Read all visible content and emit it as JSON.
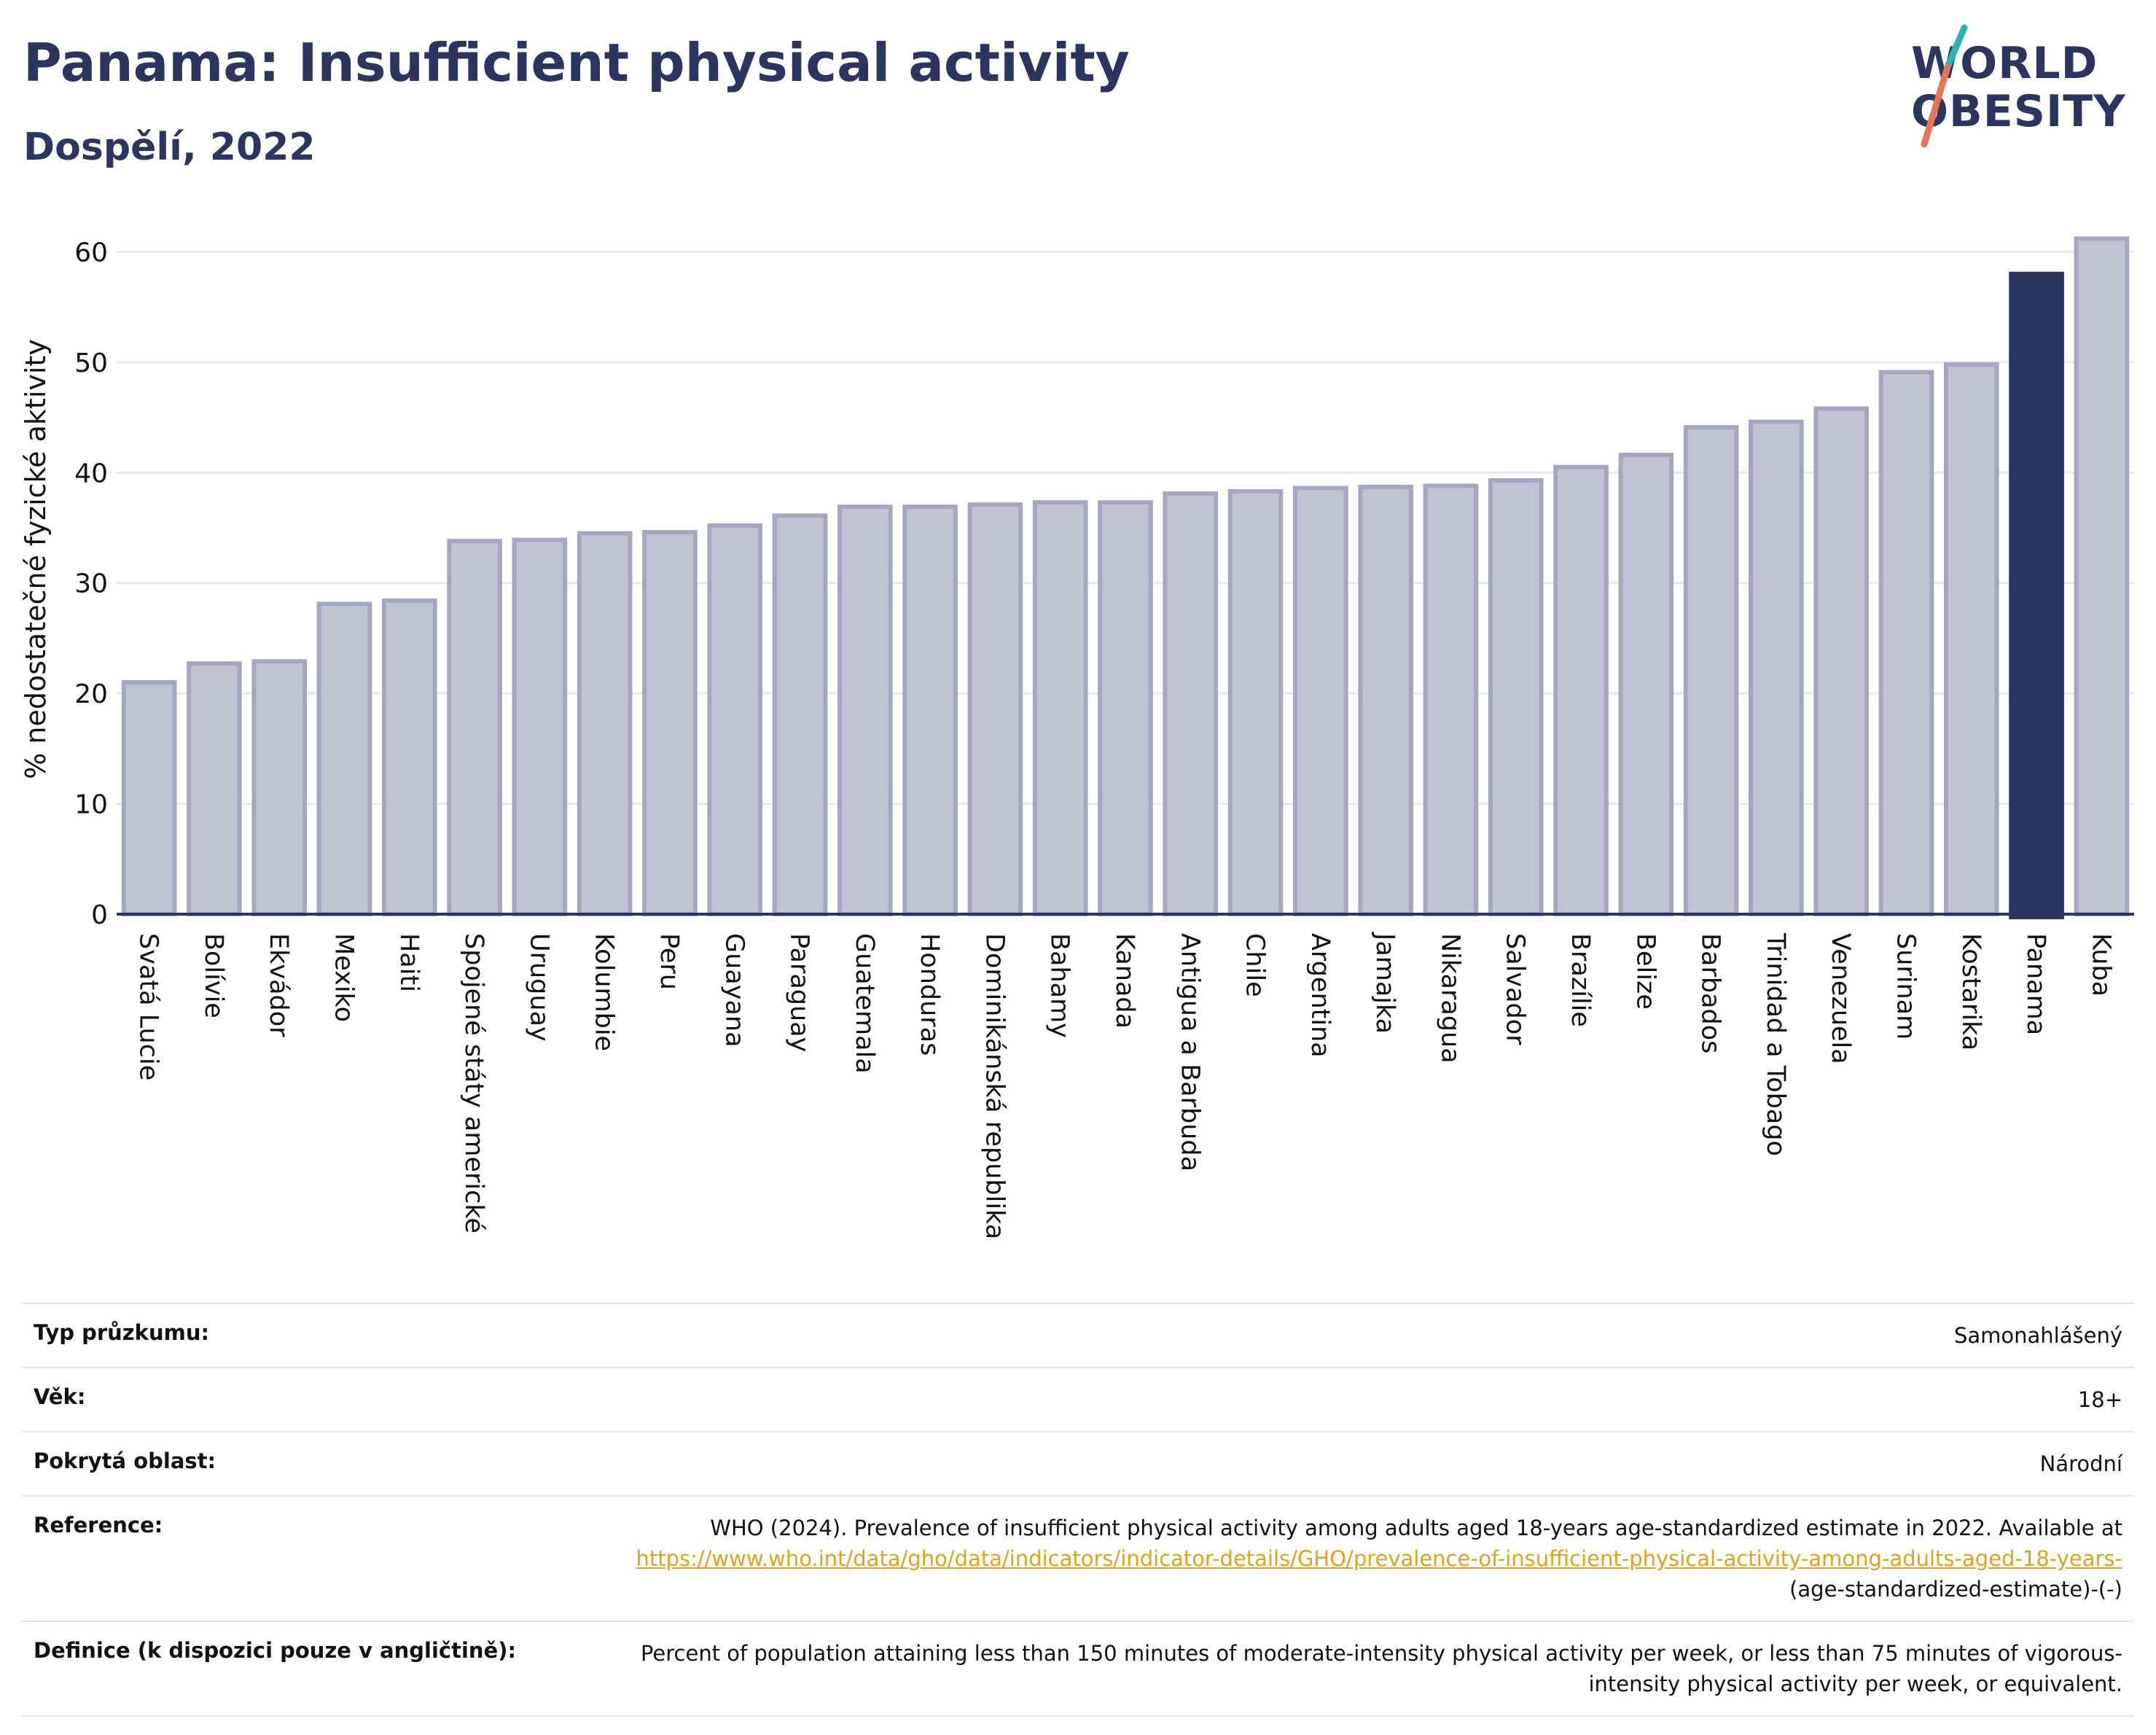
{
  "header": {
    "title": "Panama: Insufficient physical activity",
    "subtitle": "Dospělí, 2022"
  },
  "logo": {
    "line1": "WORLD",
    "line2": "OBESITY",
    "colors": {
      "text": "#2a3560",
      "slash_top": "#2bb5b0",
      "slash_bottom": "#e8735a"
    }
  },
  "chart_data": {
    "type": "bar",
    "title": "Panama: Insufficient physical activity",
    "subtitle": "Dospělí, 2022",
    "ylabel": "% nedostatečné fyzické aktivity",
    "xlabel": "",
    "ylim": [
      0,
      63
    ],
    "yticks": [
      0,
      10,
      20,
      30,
      40,
      50,
      60
    ],
    "grid": true,
    "highlight": "Panama",
    "colors": {
      "bar": "#c0c3d1",
      "bar_edge": "#a3a8c0",
      "highlight": "#2a3560",
      "grid": "#e8e8e8",
      "axis": "#2a3560"
    },
    "categories": [
      "Svatá Lucie",
      "Bolívie",
      "Ekvádor",
      "Mexiko",
      "Haiti",
      "Spojené státy americké",
      "Uruguay",
      "Kolumbie",
      "Peru",
      "Guayana",
      "Paraguay",
      "Guatemala",
      "Honduras",
      "Dominikánská republika",
      "Bahamy",
      "Kanada",
      "Antigua a Barbuda",
      "Chile",
      "Argentina",
      "Jamajka",
      "Nikaragua",
      "Salvador",
      "Brazílie",
      "Belize",
      "Barbados",
      "Trinidad a Tobago",
      "Venezuela",
      "Surinam",
      "Kostarika",
      "Panama",
      "Kuba"
    ],
    "values": [
      21.0,
      22.7,
      22.9,
      28.1,
      28.4,
      33.8,
      33.9,
      34.5,
      34.6,
      35.2,
      36.1,
      36.9,
      36.9,
      37.1,
      37.3,
      37.3,
      38.1,
      38.3,
      38.6,
      38.7,
      38.8,
      39.3,
      40.5,
      41.6,
      44.1,
      44.6,
      45.8,
      49.1,
      49.8,
      58.0,
      61.2
    ]
  },
  "meta": [
    {
      "key": "Typ průzkumu:",
      "value": "Samonahlášený"
    },
    {
      "key": "Věk:",
      "value": "18+"
    },
    {
      "key": "Pokrytá oblast:",
      "value": "Národní"
    },
    {
      "key": "Reference:",
      "value_before": "WHO (2024). Prevalence of insufficient physical activity among adults aged 18-years age-standardized estimate in 2022. Available at",
      "link": "https://www.who.int/data/gho/data/indicators/indicator-details/GHO/prevalence-of-insufficient-physical-activity-among-adults-aged-18-years-",
      "value_after": "(age-standardized-estimate)-(-)"
    },
    {
      "key": "Definice (k dispozici pouze v angličtině):",
      "value": "Percent of population attaining less than 150 minutes of moderate-intensity physical activity per week, or less than 75 minutes of vigorous-intensity physical activity per week, or equivalent."
    }
  ]
}
